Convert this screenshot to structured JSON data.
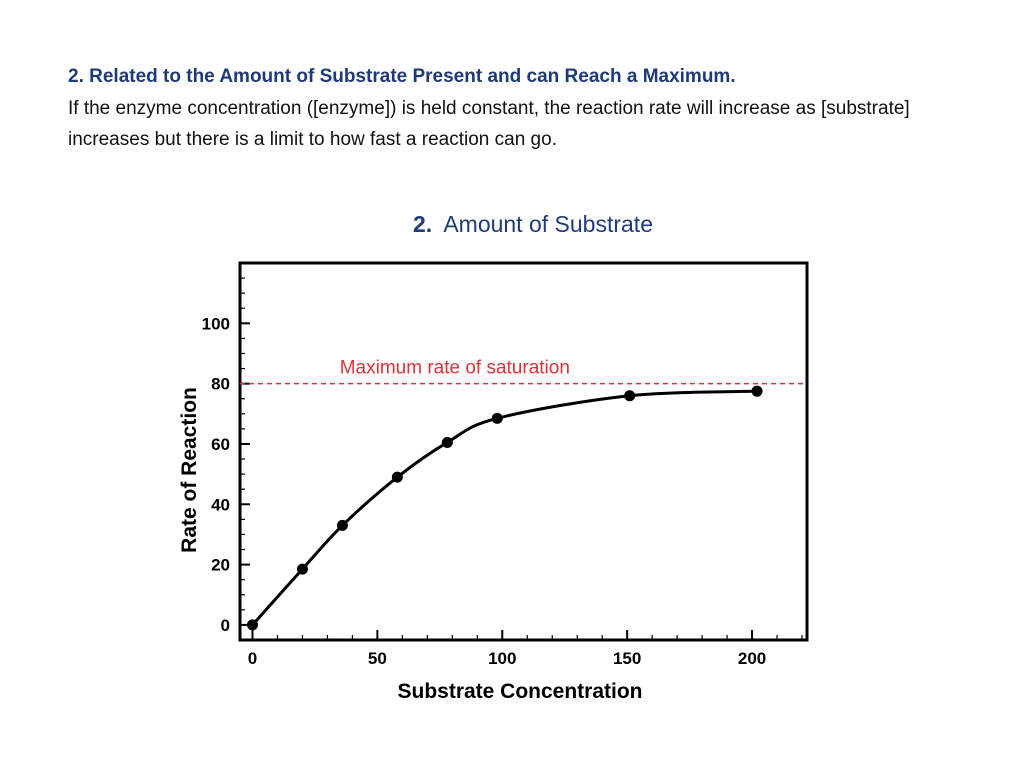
{
  "slide": {
    "heading": "2. Related to the Amount of Substrate Present and can Reach a Maximum.",
    "body": "If the enzyme concentration ([enzyme]) is held constant, the reaction rate will increase as [substrate] increases but there is a limit to how fast a reaction can go."
  },
  "colors": {
    "heading": "#1f3a7a",
    "chart_title": "#1f3a7a",
    "saturation_line": "#d9343a",
    "curve": "#000000"
  },
  "chart_data": {
    "type": "line",
    "title_number": "2.",
    "title_text": "Amount of Substrate",
    "xlabel": "Substrate Concentration",
    "ylabel": "Rate of Reaction",
    "xlim": [
      -5,
      222
    ],
    "ylim": [
      -5,
      120
    ],
    "xticks": [
      0,
      50,
      100,
      150,
      200
    ],
    "yticks": [
      0,
      20,
      40,
      60,
      80,
      100
    ],
    "grid": false,
    "series": [
      {
        "x": [
          0,
          20,
          36,
          58,
          78,
          98,
          151,
          202
        ],
        "y": [
          0,
          18.5,
          33,
          49,
          60.5,
          68.5,
          76,
          77.5
        ]
      }
    ],
    "annotations": [
      {
        "text": "Maximum rate of saturation",
        "y": 80,
        "style": "dashed"
      }
    ]
  }
}
